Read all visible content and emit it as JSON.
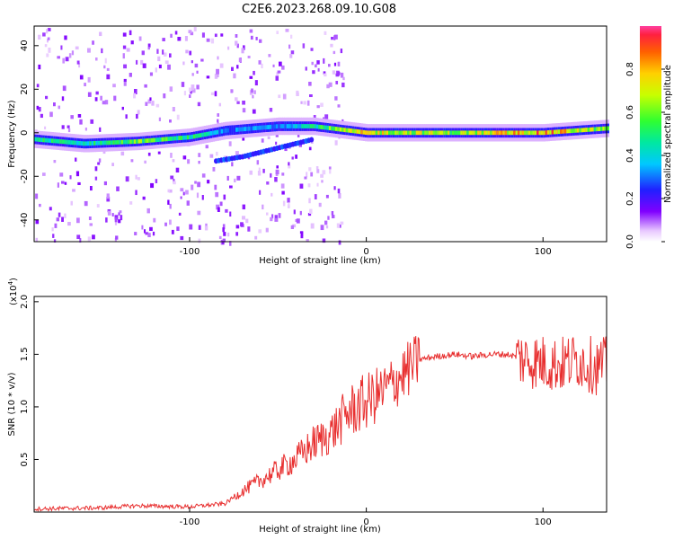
{
  "title": "C2E6.2023.268.09.10.G08",
  "chart_data": [
    {
      "type": "heatmap",
      "xlabel": "Height of straight line (km)",
      "ylabel": "Frequency (Hz)",
      "xlim": [
        -188,
        136
      ],
      "ylim": [
        -50,
        49
      ],
      "xticks": [
        -100,
        0,
        100
      ],
      "yticks": [
        -40,
        -20,
        0,
        20,
        40
      ],
      "tick_labels_x": [
        "-100",
        "0",
        "100"
      ],
      "tick_labels_y": [
        "-40",
        "-20",
        "0",
        "20",
        "40"
      ],
      "colorbar": {
        "label": "Normalized spectral amplitude",
        "range": [
          0.0,
          1.0
        ],
        "ticks": [
          "0.0",
          "0.2",
          "0.4",
          "0.6",
          "0.8"
        ]
      },
      "ridge": [
        {
          "x": -188,
          "freq": -3,
          "amp": 0.5
        },
        {
          "x": -160,
          "freq": -5,
          "amp": 0.45
        },
        {
          "x": -130,
          "freq": -4,
          "amp": 0.6
        },
        {
          "x": -100,
          "freq": -2,
          "amp": 0.5
        },
        {
          "x": -80,
          "freq": 1,
          "amp": 0.3
        },
        {
          "x": -50,
          "freq": 3,
          "amp": 0.35
        },
        {
          "x": -30,
          "freq": 3,
          "amp": 0.5
        },
        {
          "x": 0,
          "freq": 0,
          "amp": 0.75
        },
        {
          "x": 50,
          "freq": 0,
          "amp": 0.65
        },
        {
          "x": 100,
          "freq": 0,
          "amp": 0.85
        },
        {
          "x": 136,
          "freq": 2,
          "amp": 0.6
        }
      ],
      "secondary_branch": [
        {
          "x": -85,
          "freq": -13
        },
        {
          "x": -70,
          "freq": -11
        },
        {
          "x": -50,
          "freq": -7
        },
        {
          "x": -30,
          "freq": -3
        }
      ]
    },
    {
      "type": "line",
      "xlabel": "Height of straight line (km)",
      "ylabel": "SNR (10 * v/v)",
      "multiplier_label": "(x10",
      "multiplier_exp": "4",
      "multiplier_close": ")",
      "xlim": [
        -188,
        136
      ],
      "ylim": [
        0,
        2.05
      ],
      "xticks": [
        -100,
        0,
        100
      ],
      "yticks": [
        0.5,
        1.0,
        1.5,
        2.0
      ],
      "tick_labels_x": [
        "-100",
        "0",
        "100"
      ],
      "tick_labels_y": [
        "0.5",
        "1.0",
        "1.5",
        "2.0"
      ],
      "series": [
        {
          "color": "#e83030",
          "x": [
            -188,
            -150,
            -130,
            -100,
            -80,
            -70,
            -60,
            -50,
            -40,
            -30,
            -20,
            -10,
            0,
            10,
            20,
            30,
            40,
            50,
            60,
            70,
            80,
            90,
            100,
            110,
            120,
            130,
            136
          ],
          "y": [
            0.03,
            0.04,
            0.06,
            0.05,
            0.08,
            0.2,
            0.3,
            0.4,
            0.5,
            0.65,
            0.75,
            0.95,
            1.05,
            1.15,
            1.3,
            1.45,
            1.48,
            1.5,
            1.48,
            1.5,
            1.5,
            1.45,
            1.42,
            1.4,
            1.45,
            1.38,
            1.4
          ]
        }
      ]
    }
  ]
}
